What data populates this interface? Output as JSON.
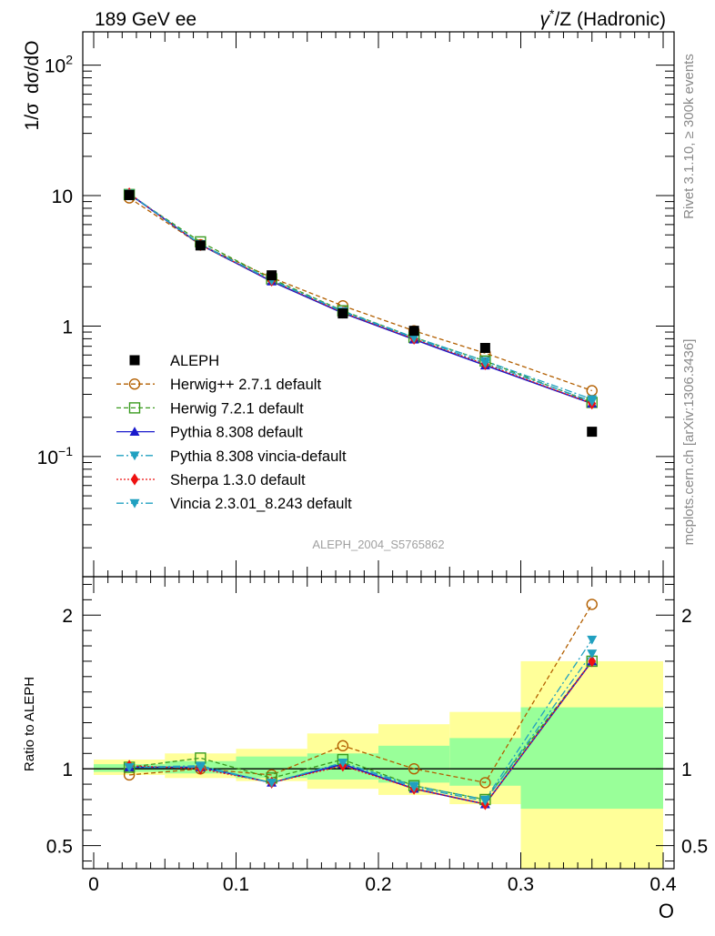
{
  "header": {
    "left": "189 GeV ee",
    "right_pre": "γ",
    "right_sup": "*",
    "right_post": "/Z (Hadronic)"
  },
  "side_text": {
    "rivet": "Rivet 3.1.10, ≥ 300k events",
    "mcplots": "mcplots.cern.ch [arXiv:1306.3436]"
  },
  "watermark": "ALEPH_2004_S5765862",
  "chart_data": [
    {
      "type": "line",
      "scale": "log",
      "ylabel_a": "1/σ",
      "ylabel_b": "dσ/dO",
      "xlim": [
        0,
        0.4
      ],
      "ylim": [
        0.012,
        180
      ],
      "y_ticks": [
        {
          "v": 100,
          "base": "10",
          "exp": "2"
        },
        {
          "v": 10,
          "base": "10",
          "exp": ""
        },
        {
          "v": 1,
          "base": "1",
          "exp": ""
        },
        {
          "v": 0.1,
          "base": "10",
          "exp": "−1"
        }
      ],
      "x": [
        0.025,
        0.075,
        0.125,
        0.175,
        0.225,
        0.275,
        0.35
      ],
      "data": {
        "name": "ALEPH",
        "values": [
          10.1,
          4.15,
          2.45,
          1.25,
          0.92,
          0.68,
          0.155
        ]
      },
      "series": [
        {
          "name": "Herwig++ 2.7.1 default",
          "color": "#b35f00",
          "dash": "5,3",
          "marker": "circle-open",
          "values": [
            9.6,
            4.2,
            2.35,
            1.43,
            0.92,
            0.62,
            0.32
          ]
        },
        {
          "name": "Herwig 7.2.1 default",
          "color": "#3a9b1f",
          "dash": "5,3",
          "marker": "square-open",
          "values": [
            10.2,
            4.42,
            2.3,
            1.31,
            0.82,
            0.54,
            0.26
          ]
        },
        {
          "name": "Pythia 8.308 default",
          "color": "#1a1acc",
          "dash": "",
          "marker": "triangle-up",
          "values": [
            10.3,
            4.2,
            2.2,
            1.26,
            0.79,
            0.5,
            0.255
          ]
        },
        {
          "name": "Pythia 8.308 vincia-default",
          "color": "#20a0c0",
          "dash": "8,3,2,3",
          "marker": "triangle-down",
          "values": [
            10.35,
            4.25,
            2.25,
            1.3,
            0.82,
            0.54,
            0.275
          ]
        },
        {
          "name": "Sherpa 1.3.0 default",
          "color": "#ee1111",
          "dash": "2,2",
          "marker": "diamond",
          "values": [
            10.4,
            4.18,
            2.23,
            1.27,
            0.8,
            0.51,
            0.255
          ]
        },
        {
          "name": "Vincia 2.3.01_8.243 default",
          "color": "#20a0c0",
          "dash": "8,3,2,3",
          "marker": "triangle-down",
          "values": [
            10.35,
            4.22,
            2.24,
            1.29,
            0.81,
            0.52,
            0.265
          ]
        }
      ]
    },
    {
      "type": "line",
      "scale": "linear",
      "ylabel": "Ratio to ALEPH",
      "xlabel": "O",
      "xlim": [
        0,
        0.4
      ],
      "ylim": [
        0.35,
        2.25
      ],
      "x_ticks": [
        {
          "v": 0,
          "label": "0"
        },
        {
          "v": 0.1,
          "label": "0.1"
        },
        {
          "v": 0.2,
          "label": "0.2"
        },
        {
          "v": 0.3,
          "label": "0.3"
        },
        {
          "v": 0.4,
          "label": "0.4"
        }
      ],
      "y_ticks": [
        {
          "v": 2,
          "label": "2"
        },
        {
          "v": 1,
          "label": "1"
        },
        {
          "v": 0.5,
          "label": "0.5"
        }
      ],
      "bins": [
        [
          0,
          0.05
        ],
        [
          0.05,
          0.1
        ],
        [
          0.1,
          0.15
        ],
        [
          0.15,
          0.2
        ],
        [
          0.2,
          0.25
        ],
        [
          0.25,
          0.3
        ],
        [
          0.3,
          0.4
        ]
      ],
      "band_stat": [
        [
          0.98,
          1.03
        ],
        [
          0.97,
          1.05
        ],
        [
          0.94,
          1.08
        ],
        [
          0.93,
          1.1
        ],
        [
          0.91,
          1.15
        ],
        [
          0.89,
          1.2
        ],
        [
          0.74,
          1.4
        ]
      ],
      "band_total": [
        [
          0.96,
          1.06
        ],
        [
          0.94,
          1.1
        ],
        [
          0.92,
          1.13
        ],
        [
          0.87,
          1.23
        ],
        [
          0.83,
          1.29
        ],
        [
          0.77,
          1.37
        ],
        [
          0.35,
          1.7
        ]
      ],
      "x": [
        0.025,
        0.075,
        0.125,
        0.175,
        0.225,
        0.275,
        0.35
      ],
      "series": [
        {
          "name": "Herwig++ 2.7.1 default",
          "values": [
            0.96,
            1.0,
            0.96,
            1.15,
            1.0,
            0.91,
            2.07
          ]
        },
        {
          "name": "Herwig 7.2.1 default",
          "values": [
            1.01,
            1.07,
            0.94,
            1.06,
            0.89,
            0.8,
            1.7
          ]
        },
        {
          "name": "Pythia 8.308 default",
          "values": [
            1.01,
            1.01,
            0.91,
            1.03,
            0.87,
            0.77,
            1.7
          ]
        },
        {
          "name": "Pythia 8.308 vincia-default",
          "values": [
            1.01,
            1.02,
            0.91,
            1.04,
            0.89,
            0.8,
            1.84
          ]
        },
        {
          "name": "Sherpa 1.3.0 default",
          "values": [
            1.02,
            1.0,
            0.91,
            1.02,
            0.87,
            0.77,
            1.7
          ]
        },
        {
          "name": "Vincia 2.3.01_8.243 default",
          "values": [
            1.01,
            1.01,
            0.91,
            1.04,
            0.88,
            0.79,
            1.75
          ]
        }
      ]
    }
  ]
}
